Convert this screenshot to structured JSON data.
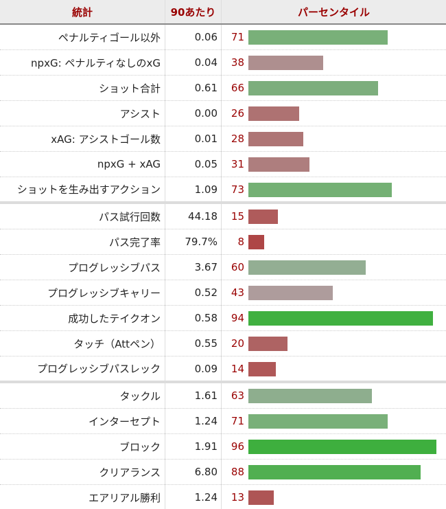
{
  "header": {
    "stat": "統計",
    "per90": "90あたり",
    "percentile": "パーセンタイル"
  },
  "chart_data": {
    "type": "bar",
    "orientation": "horizontal",
    "xlim": [
      0,
      100
    ],
    "rows": [
      {
        "stat": "ペナルティゴール以外",
        "per90": "0.06",
        "percentile": 71,
        "color": "#79b079"
      },
      {
        "stat": "npxG: ペナルティなしのxG",
        "per90": "0.04",
        "percentile": 38,
        "color": "#ae8f8f"
      },
      {
        "stat": "ショット合計",
        "per90": "0.61",
        "percentile": 66,
        "color": "#7dae7d"
      },
      {
        "stat": "アシスト",
        "per90": "0.00",
        "percentile": 26,
        "color": "#ae7272"
      },
      {
        "stat": "xAG: アシストゴール数",
        "per90": "0.01",
        "percentile": 28,
        "color": "#ae7575"
      },
      {
        "stat": "npxG + xAG",
        "per90": "0.05",
        "percentile": 31,
        "color": "#ae7e7e"
      },
      {
        "stat": "ショットを生み出すアクション",
        "per90": "1.09",
        "percentile": 73,
        "color": "#74b074",
        "section_end": true
      },
      {
        "stat": "パス試行回数",
        "per90": "44.18",
        "percentile": 15,
        "color": "#af5b5b"
      },
      {
        "stat": "パス完了率",
        "per90": "79.7%",
        "percentile": 8,
        "color": "#ae4646"
      },
      {
        "stat": "プログレッシブパス",
        "per90": "3.67",
        "percentile": 60,
        "color": "#93ae93"
      },
      {
        "stat": "プログレッシブキャリー",
        "per90": "0.52",
        "percentile": 43,
        "color": "#ae9c9c"
      },
      {
        "stat": "成功したテイクオン",
        "per90": "0.58",
        "percentile": 94,
        "color": "#40b040"
      },
      {
        "stat": "タッチ（Attペン）",
        "per90": "0.55",
        "percentile": 20,
        "color": "#ae6363"
      },
      {
        "stat": "プログレッシブパスレック",
        "per90": "0.09",
        "percentile": 14,
        "color": "#af5858",
        "section_end": true
      },
      {
        "stat": "タックル",
        "per90": "1.61",
        "percentile": 63,
        "color": "#8eae8e"
      },
      {
        "stat": "インターセプト",
        "per90": "1.24",
        "percentile": 71,
        "color": "#79b079"
      },
      {
        "stat": "ブロック",
        "per90": "1.91",
        "percentile": 96,
        "color": "#3eaf3e"
      },
      {
        "stat": "クリアランス",
        "per90": "6.80",
        "percentile": 88,
        "color": "#51af51"
      },
      {
        "stat": "エアリアル勝利",
        "per90": "1.24",
        "percentile": 13,
        "color": "#ae5555"
      }
    ]
  }
}
